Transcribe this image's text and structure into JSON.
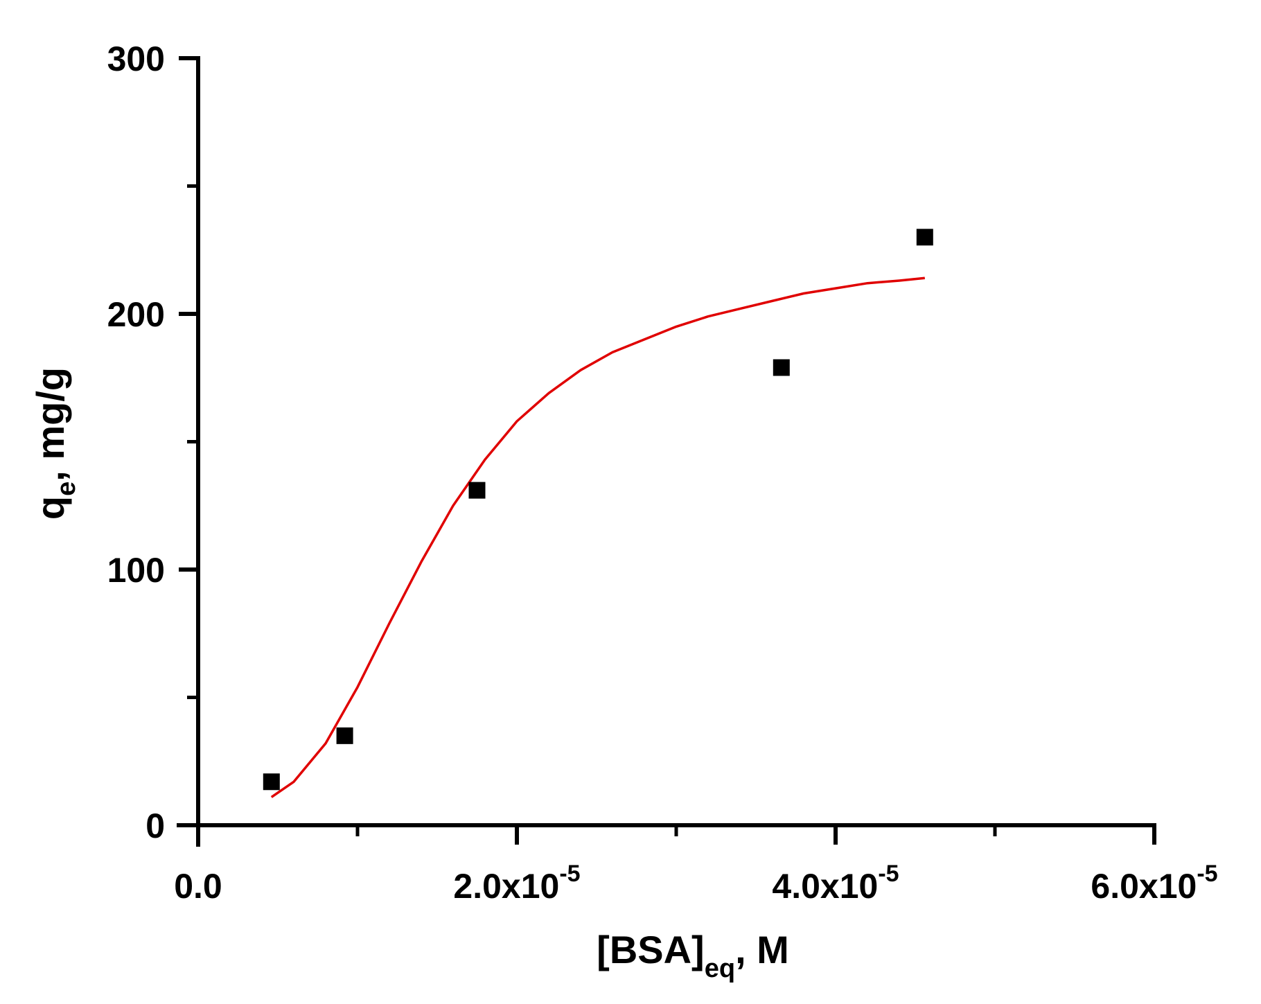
{
  "chart_data": {
    "type": "scatter",
    "title": "",
    "xlabel": {
      "base": "[BSA]",
      "subscript": "eq",
      "suffix": ", M"
    },
    "ylabel": {
      "base": "q",
      "subscript": "e",
      "suffix": ", mg/g"
    },
    "xlim": [
      0,
      6e-05
    ],
    "ylim": [
      0,
      300
    ],
    "x_ticks": [
      {
        "value": 0,
        "mantissa": "0.0",
        "exponent": ""
      },
      {
        "value": 2e-05,
        "mantissa": "2.0x10",
        "exponent": "-5"
      },
      {
        "value": 4e-05,
        "mantissa": "4.0x10",
        "exponent": "-5"
      },
      {
        "value": 6e-05,
        "mantissa": "6.0x10",
        "exponent": "-5"
      }
    ],
    "x_minor_ticks": [
      1e-05,
      3e-05,
      5e-05
    ],
    "y_ticks": [
      {
        "value": 0,
        "label": "0"
      },
      {
        "value": 100,
        "label": "100"
      },
      {
        "value": 200,
        "label": "200"
      },
      {
        "value": 300,
        "label": "300"
      }
    ],
    "y_minor_ticks": [
      50,
      150,
      250
    ],
    "grid": false,
    "series": [
      {
        "type": "scatter",
        "marker": "square",
        "color": "#000000",
        "x": [
          4.6e-06,
          9.2e-06,
          1.75e-05,
          3.66e-05,
          4.56e-05
        ],
        "y": [
          17,
          35,
          131,
          179,
          230
        ]
      },
      {
        "type": "line",
        "color": "#e00000",
        "x": [
          4.6e-06,
          6e-06,
          8e-06,
          1e-05,
          1.2e-05,
          1.4e-05,
          1.6e-05,
          1.8e-05,
          2e-05,
          2.2e-05,
          2.4e-05,
          2.6e-05,
          2.8e-05,
          3e-05,
          3.2e-05,
          3.4e-05,
          3.6e-05,
          3.8e-05,
          4e-05,
          4.2e-05,
          4.4e-05,
          4.56e-05
        ],
        "y": [
          11,
          17,
          32,
          54,
          79,
          103,
          125,
          143,
          158,
          169,
          178,
          185,
          190,
          195,
          199,
          202,
          205,
          208,
          210,
          212,
          213,
          214
        ]
      }
    ]
  }
}
